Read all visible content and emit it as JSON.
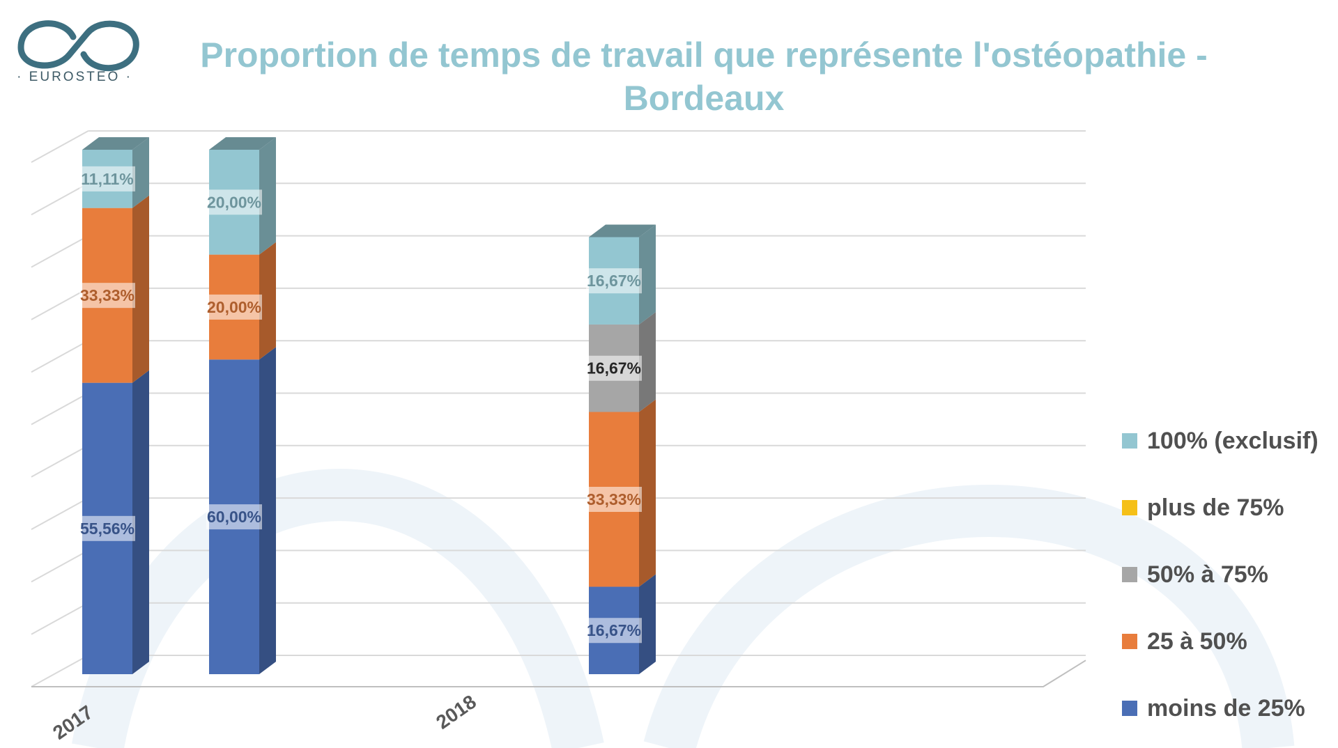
{
  "brand": {
    "logo_text": "· EUROSTEO ·",
    "logo_color": "#3d6f80"
  },
  "chart_data": {
    "type": "bar",
    "stacked": true,
    "three_d": true,
    "title": "Proportion de temps de travail que représente l'ostéopathie - Bordeaux",
    "title_color": "#93c6d1",
    "xlabel": "",
    "ylabel": "",
    "ylim": [
      0,
      1
    ],
    "grid": true,
    "legend_position": "right",
    "categories": [
      "2017",
      "",
      "",
      "2018"
    ],
    "x_tick_labels": [
      "2017",
      "2018"
    ],
    "series": [
      {
        "name": "moins de 25%",
        "color": "#4a6eb5",
        "values": [
          0.5556,
          0.6,
          null,
          0.1667
        ],
        "labels": [
          "55,56%",
          "60,00%",
          "",
          "16,67%"
        ]
      },
      {
        "name": "25 à 50%",
        "color": "#e87d3c",
        "values": [
          0.3333,
          0.2,
          null,
          0.3333
        ],
        "labels": [
          "33,33%",
          "20,00%",
          "",
          "33,33%"
        ]
      },
      {
        "name": "50% à 75%",
        "color": "#a6a6a6",
        "values": [
          0,
          0,
          null,
          0.1667
        ],
        "labels": [
          "",
          "",
          "",
          "16,67%"
        ]
      },
      {
        "name": "plus de 75%",
        "color": "#f5c018",
        "values": [
          0,
          0,
          null,
          0
        ],
        "labels": [
          "",
          "",
          "",
          ""
        ]
      },
      {
        "name": "100% (exclusif)",
        "color": "#93c6d1",
        "values": [
          0.1111,
          0.2,
          null,
          0.1667
        ],
        "labels": [
          "11,11%",
          "20,00%",
          "",
          "16,67%"
        ]
      }
    ],
    "legend_order": [
      "100% (exclusif)",
      "plus de 75%",
      "50% à 75%",
      "25 à 50%",
      "moins de 25%"
    ]
  }
}
